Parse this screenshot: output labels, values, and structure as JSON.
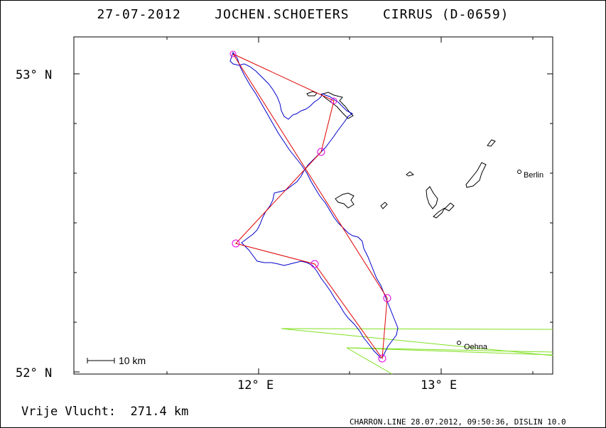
{
  "header": {
    "title": "27-07-2012    JOCHEN.SCHOETERS    CIRRUS (D-0659)"
  },
  "map": {
    "lat_labels": [
      "53° N",
      "52° N"
    ],
    "lon_labels": [
      "12° E",
      "13° E"
    ],
    "cities": [
      {
        "name": "Berlin"
      },
      {
        "name": "Oehna"
      }
    ],
    "scale_bar_label": "10 km",
    "colors": {
      "track": "#0000cc",
      "task_line": "#e00000",
      "turnpoint": "#e000e0",
      "airspace": "#80e020",
      "lakes": "#000000"
    }
  },
  "footer": {
    "distance_text": "Vrije Vlucht:  271.4 km",
    "credit_text": "CHARRON.LINE 28.07.2012, 09:50:36, DISLIN 10.0"
  }
}
